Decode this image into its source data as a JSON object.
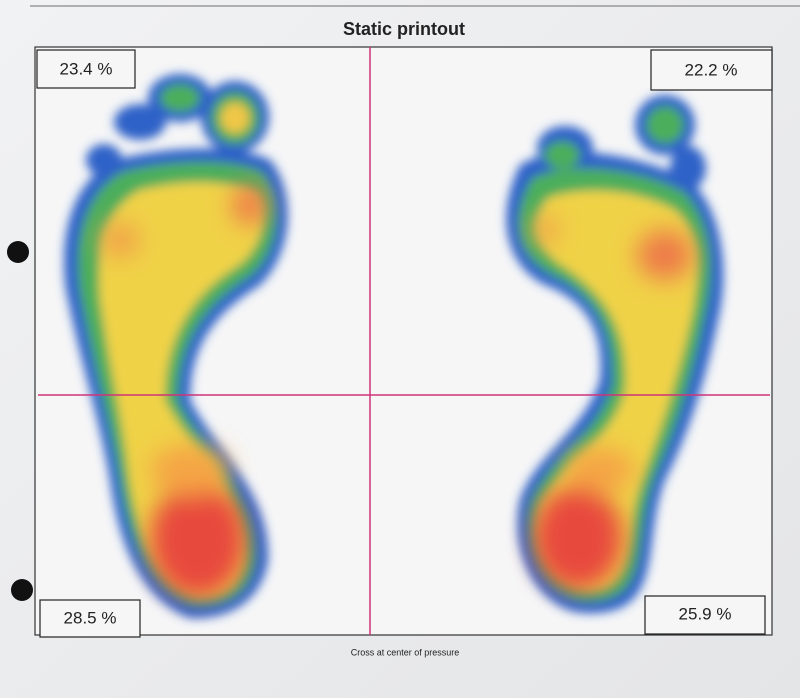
{
  "header": {
    "title": "Static printout"
  },
  "quadrants": {
    "top_left": "23.4 %",
    "top_right": "22.2 %",
    "bottom_left": "28.5 %",
    "bottom_right": "25.9 %"
  },
  "footer": "Cross at center of pressure"
}
